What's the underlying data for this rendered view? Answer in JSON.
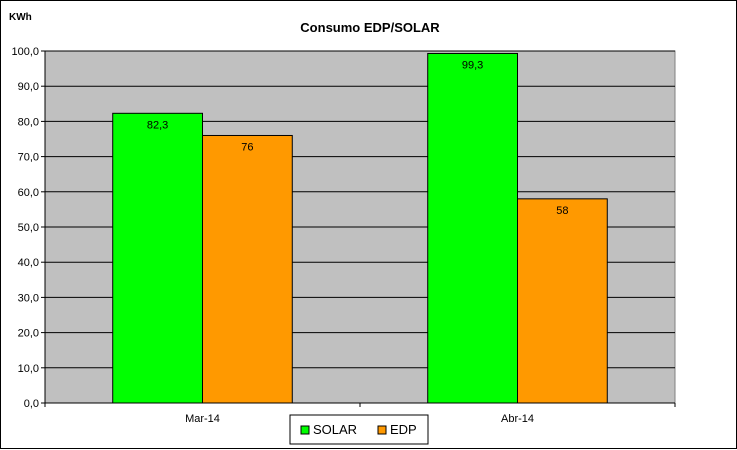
{
  "chart_data": {
    "type": "bar",
    "title": "Consumo EDP/SOLAR",
    "ylabel": "KWh",
    "xlabel": "",
    "categories": [
      "Mar-14",
      "Abr-14"
    ],
    "series": [
      {
        "name": "SOLAR",
        "values": [
          82.3,
          99.3
        ],
        "labels": [
          "82,3",
          "99,3"
        ],
        "color": "#00ff00"
      },
      {
        "name": "EDP",
        "values": [
          76,
          58
        ],
        "labels": [
          "76",
          "58"
        ],
        "color": "#ff9900"
      }
    ],
    "ylim": [
      0,
      100
    ],
    "yticks": [
      0,
      10,
      20,
      30,
      40,
      50,
      60,
      70,
      80,
      90,
      100
    ],
    "ytick_labels": [
      "0,0",
      "10,0",
      "20,0",
      "30,0",
      "40,0",
      "50,0",
      "60,0",
      "70,0",
      "80,0",
      "90,0",
      "100,0"
    ],
    "grid": true,
    "plot_background": "#c0c0c0",
    "legend_position": "bottom"
  }
}
